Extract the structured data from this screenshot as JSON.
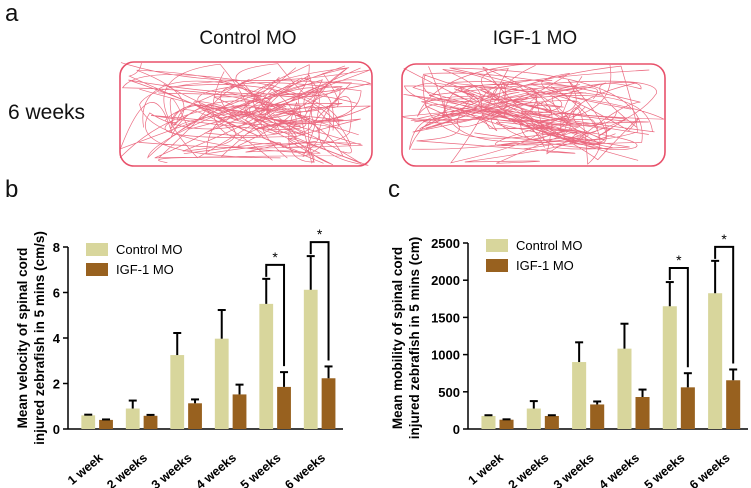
{
  "panel_a": {
    "letter": "a",
    "tracks": [
      {
        "title": "Control MO"
      },
      {
        "title": "IGF-1 MO"
      }
    ],
    "row_label": "6 weeks",
    "track_color": "#e8506a"
  },
  "chart_data": [
    {
      "type": "bar",
      "panel": "b",
      "categories": [
        "1 week",
        "2 weeks",
        "3 weeks",
        "4 weeks",
        "5 weeks",
        "6 weeks"
      ],
      "series": [
        {
          "name": "Control MO",
          "color": "#d8d69c",
          "values": [
            0.6,
            0.9,
            3.25,
            3.97,
            5.5,
            6.12
          ],
          "error_upper": [
            0.63,
            1.25,
            4.22,
            5.23,
            6.6,
            7.6
          ]
        },
        {
          "name": "IGF-1 MO",
          "color": "#98611f",
          "values": [
            0.4,
            0.58,
            1.13,
            1.52,
            1.85,
            2.23
          ],
          "error_upper": [
            0.42,
            0.62,
            1.3,
            1.95,
            2.5,
            2.75
          ]
        }
      ],
      "ylabel_lines": [
        "Mean velocity of spinal cord",
        "injured zebrafish in 5 mins (cm/s)"
      ],
      "ylim": [
        0,
        8
      ],
      "yticks": [
        "0",
        "2",
        "4",
        "6",
        "8"
      ],
      "significance": [
        {
          "category_index": 4,
          "label": "*"
        },
        {
          "category_index": 5,
          "label": "*"
        }
      ],
      "legend": "top-left"
    },
    {
      "type": "bar",
      "panel": "c",
      "categories": [
        "1 week",
        "2 weeks",
        "3 weeks",
        "4 weeks",
        "5 weeks",
        "6 weeks"
      ],
      "series": [
        {
          "name": "Control MO",
          "color": "#d8d69c",
          "values": [
            175,
            275,
            900,
            1080,
            1650,
            1825
          ],
          "error_upper": [
            185,
            375,
            1165,
            1415,
            1975,
            2260
          ]
        },
        {
          "name": "IGF-1 MO",
          "color": "#98611f",
          "values": [
            125,
            175,
            330,
            430,
            560,
            655
          ],
          "error_upper": [
            130,
            185,
            370,
            530,
            750,
            800
          ]
        }
      ],
      "ylabel_lines": [
        "Mean mobility of spinal cord",
        "injured zebrafish in 5 mins (cm)"
      ],
      "ylim": [
        0,
        2500
      ],
      "yticks": [
        "0",
        "500",
        "1000",
        "1500",
        "2000",
        "2500"
      ],
      "significance": [
        {
          "category_index": 4,
          "label": "*"
        },
        {
          "category_index": 5,
          "label": "*"
        }
      ],
      "legend": "top-left"
    }
  ]
}
